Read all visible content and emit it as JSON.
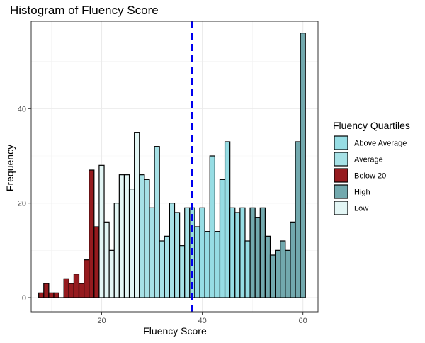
{
  "chart_data": {
    "type": "bar",
    "title": "Histogram of Fluency Score",
    "xlabel": "Fluency Score",
    "ylabel": "Frequency",
    "xlim": [
      6,
      63
    ],
    "ylim": [
      -3,
      58.5
    ],
    "x_ticks": [
      20,
      40,
      60
    ],
    "y_ticks": [
      0,
      20,
      40
    ],
    "bin_width": 1,
    "grid": true,
    "legend_position": "right",
    "reference_line": {
      "x": 38,
      "color": "#0000ee",
      "style": "dashed"
    },
    "legend": {
      "title": "Fluency Quartiles",
      "entries": [
        {
          "name": "Above Average",
          "color": "#96dde4"
        },
        {
          "name": "Average",
          "color": "#a6e1e6"
        },
        {
          "name": "Below 20",
          "color": "#961b1f"
        },
        {
          "name": "High",
          "color": "#72a9ae"
        },
        {
          "name": "Low",
          "color": "#e3f6f5"
        }
      ]
    },
    "series": [
      {
        "name": "Below 20",
        "color": "#961b1f",
        "x": [
          8,
          9,
          10,
          11,
          12,
          13,
          14,
          15,
          16,
          17,
          18,
          19
        ],
        "values": [
          1,
          3,
          1,
          1,
          0,
          4,
          3,
          5,
          3,
          8,
          27,
          15
        ]
      },
      {
        "name": "Low",
        "color": "#e3f6f5",
        "x": [
          20,
          21,
          22,
          23,
          24,
          25,
          26,
          27
        ],
        "values": [
          28,
          16,
          10,
          20,
          26,
          26,
          23,
          35
        ]
      },
      {
        "name": "Average",
        "color": "#a6e1e6",
        "x": [
          28,
          29,
          30,
          31,
          32,
          33,
          34,
          35,
          36,
          37
        ],
        "values": [
          26,
          25,
          19,
          32,
          12,
          13,
          20,
          18,
          11,
          19
        ]
      },
      {
        "name": "Above Average",
        "color": "#96dde4",
        "x": [
          38,
          39,
          40,
          41,
          42,
          43,
          44,
          45,
          46,
          47,
          48,
          49
        ],
        "values": [
          19,
          15,
          19,
          14,
          30,
          14,
          25,
          33,
          19,
          18,
          19,
          12
        ]
      },
      {
        "name": "High",
        "color": "#72a9ae",
        "x": [
          50,
          51,
          52,
          53,
          54,
          55,
          56,
          57,
          58,
          59,
          60
        ],
        "values": [
          19,
          17,
          19,
          13,
          9,
          10,
          12,
          10,
          16,
          33,
          56
        ]
      }
    ]
  }
}
